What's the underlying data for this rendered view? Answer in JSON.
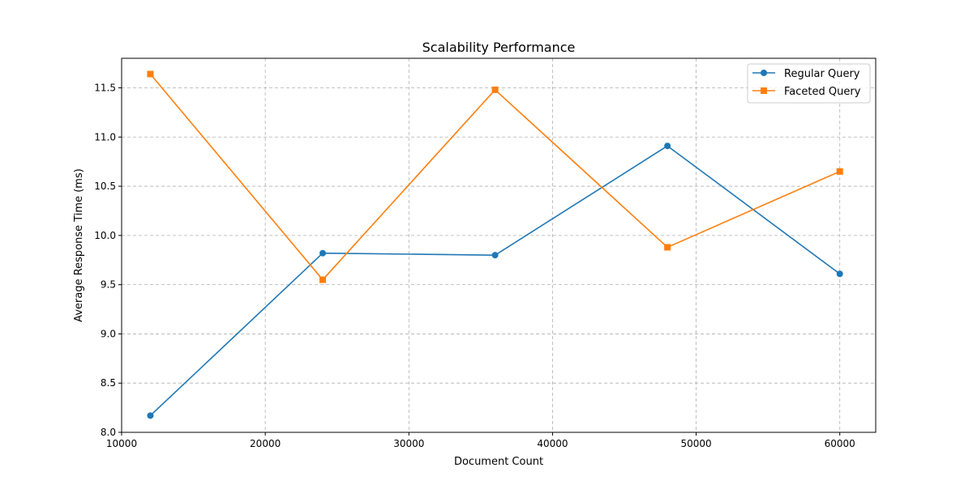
{
  "chart_data": {
    "type": "line",
    "title": "Scalability Performance",
    "xlabel": "Document Count",
    "ylabel": "Average Response Time (ms)",
    "x": [
      12000,
      24000,
      36000,
      48000,
      60000
    ],
    "xlim": [
      10000,
      62500
    ],
    "ylim": [
      8.0,
      11.8
    ],
    "xticks": [
      10000,
      20000,
      30000,
      40000,
      50000,
      60000
    ],
    "yticks": [
      8.0,
      8.5,
      9.0,
      9.5,
      10.0,
      10.5,
      11.0,
      11.5
    ],
    "xtick_labels": [
      "10000",
      "20000",
      "30000",
      "40000",
      "50000",
      "60000"
    ],
    "ytick_labels": [
      "8.0",
      "8.5",
      "9.0",
      "9.5",
      "10.0",
      "10.5",
      "11.0",
      "11.5"
    ],
    "grid": true,
    "legend_position": "top-right",
    "series": [
      {
        "name": "Regular Query",
        "color": "#1f77b4",
        "marker": "circle",
        "values": [
          8.17,
          9.82,
          9.8,
          10.91,
          9.61
        ]
      },
      {
        "name": "Faceted Query",
        "color": "#ff7f0e",
        "marker": "square",
        "values": [
          11.64,
          9.55,
          11.48,
          9.88,
          10.65
        ]
      }
    ]
  }
}
